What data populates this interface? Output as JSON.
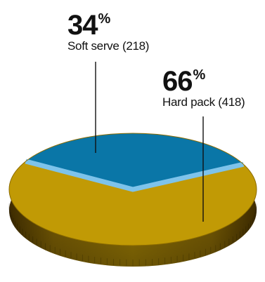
{
  "chart_data": {
    "type": "pie",
    "title": "",
    "slices": [
      {
        "label": "Soft serve",
        "count": 218,
        "percent": 34,
        "color": "#0a76a7"
      },
      {
        "label": "Hard pack",
        "count": 418,
        "percent": 66,
        "color": "#c19a05"
      }
    ]
  },
  "labels": {
    "soft": {
      "pct": "34",
      "pct_sign": "%",
      "cat": "Soft serve (218)"
    },
    "hard": {
      "pct": "66",
      "pct_sign": "%",
      "cat": "Hard pack (418)"
    }
  },
  "colors": {
    "soft": "#0a76a7",
    "soft_edge": "#7ec3ea",
    "hard": "#c19a05",
    "hard_dark": "#6b4f00",
    "leader": "#111111"
  }
}
